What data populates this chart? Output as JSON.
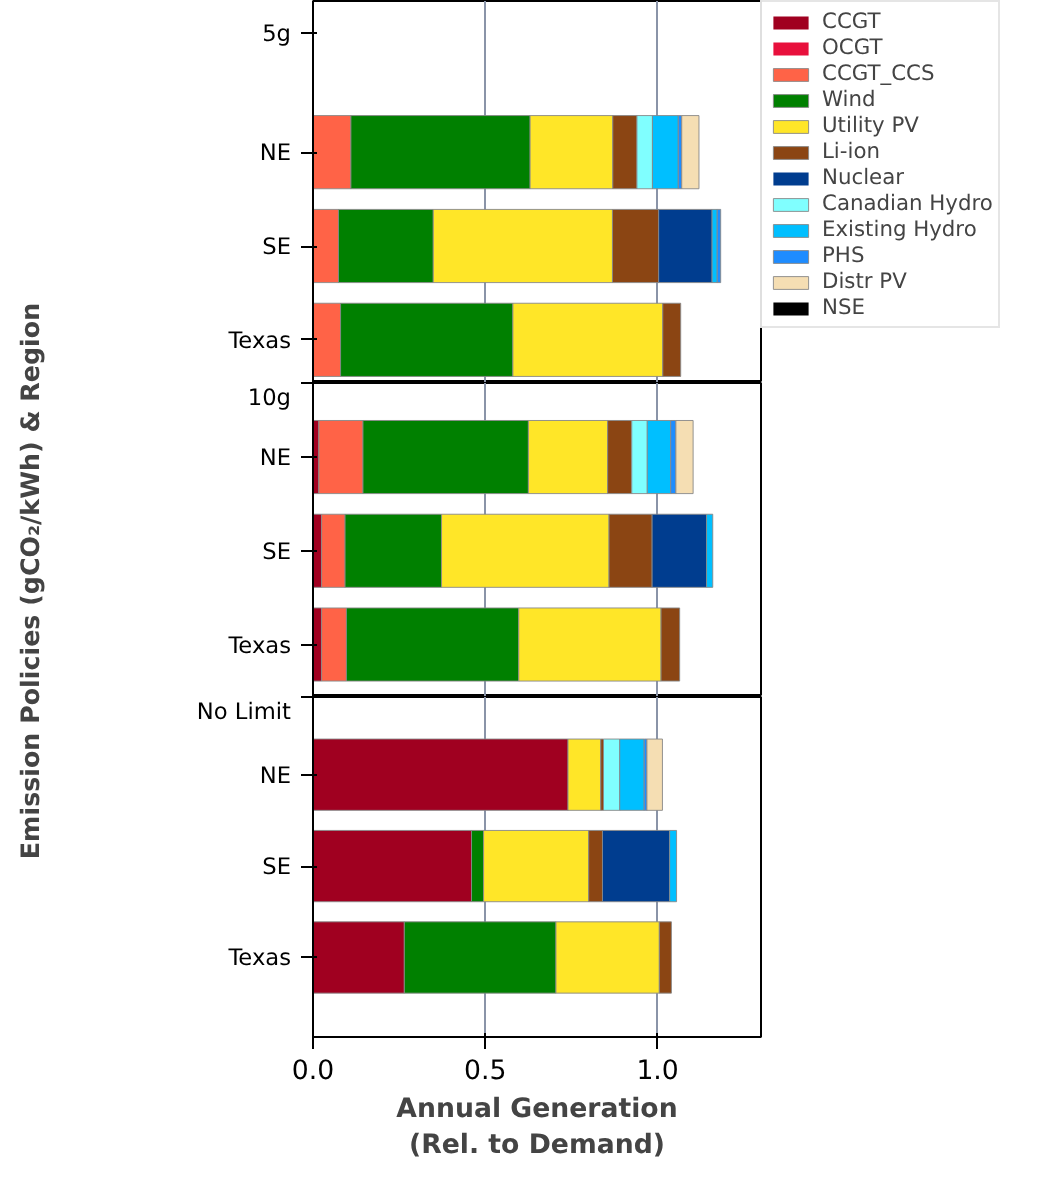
{
  "chart_data": [
    {
      "type": "bar",
      "title": "5g",
      "orientation": "horizontal",
      "stacked": true,
      "categories": [
        "NE",
        "SE",
        "Texas"
      ],
      "xlim": [
        0,
        1.3
      ],
      "xticks": [
        0,
        0.5,
        1
      ],
      "tick_labels": "y",
      "grid": "x",
      "legend": "top right",
      "series": [
        {
          "name": "CCGT",
          "color": "#a00020",
          "values": [
            0,
            0,
            0
          ]
        },
        {
          "name": "OCGT",
          "color": "#e8103c",
          "values": [
            0,
            0,
            0
          ]
        },
        {
          "name": "CCGT_CCS",
          "color": "#ff6347",
          "values": [
            0.11,
            0.074,
            0.08
          ]
        },
        {
          "name": "Wind",
          "color": "#008000",
          "values": [
            0.52,
            0.275,
            0.5
          ]
        },
        {
          "name": "Utility PV",
          "color": "#ffe628",
          "values": [
            0.24,
            0.52,
            0.435
          ]
        },
        {
          "name": "Li-ion",
          "color": "#8b4513",
          "values": [
            0.07,
            0.134,
            0.052
          ]
        },
        {
          "name": "Nuclear",
          "color": "#003d8f",
          "values": [
            0,
            0.155,
            0
          ]
        },
        {
          "name": "Canadian Hydro",
          "color": "#80ffff",
          "values": [
            0.045,
            0,
            0
          ]
        },
        {
          "name": "Existing Hydro",
          "color": "#00bfff",
          "values": [
            0.075,
            0.015,
            0
          ]
        },
        {
          "name": "PHS",
          "color": "#1e8cff",
          "values": [
            0.01,
            0.01,
            0
          ]
        },
        {
          "name": "Distr PV",
          "color": "#f5deb3",
          "values": [
            0.05,
            0,
            0
          ]
        },
        {
          "name": "NSE",
          "color": "#000000",
          "values": [
            0,
            0,
            0
          ]
        }
      ]
    },
    {
      "type": "bar",
      "title": "10g",
      "orientation": "horizontal",
      "stacked": true,
      "categories": [
        "NE",
        "SE",
        "Texas"
      ],
      "xlim": [
        0,
        1.3
      ],
      "xticks": [
        0,
        0.5,
        1
      ],
      "tick_labels": "y",
      "grid": "x",
      "ylabel": "Emission Policies (gCO₂/kWh) & Region",
      "series": [
        {
          "color": "#a00020",
          "values": [
            0.017,
            0.025,
            0.025
          ]
        },
        {
          "color": "#ff6347",
          "values": [
            0.128,
            0.068,
            0.072
          ]
        },
        {
          "color": "#008000",
          "values": [
            0.48,
            0.28,
            0.5
          ]
        },
        {
          "color": "#ffe628",
          "values": [
            0.23,
            0.486,
            0.413
          ]
        },
        {
          "color": "#8b4513",
          "values": [
            0.07,
            0.125,
            0.054
          ]
        },
        {
          "color": "#003d8f",
          "values": [
            0,
            0.158,
            0
          ]
        },
        {
          "color": "#80ffff",
          "values": [
            0.045,
            0,
            0
          ]
        },
        {
          "color": "#00bfff",
          "values": [
            0.068,
            0.018,
            0
          ]
        },
        {
          "color": "#1e8cff",
          "values": [
            0.015,
            0,
            0
          ]
        },
        {
          "color": "#f5deb3",
          "values": [
            0.05,
            0,
            0
          ]
        }
      ]
    },
    {
      "type": "bar",
      "title": "No Limit",
      "orientation": "horizontal",
      "stacked": true,
      "categories": [
        "NE",
        "SE",
        "Texas"
      ],
      "xlim": [
        0,
        1.3
      ],
      "xticks": [
        {
          "value": 0,
          "label": "0.0"
        },
        {
          "value": 0.5,
          "label": "0.5"
        },
        {
          "value": 1,
          "label": "1.0"
        }
      ],
      "grid": "x",
      "xlabel": "Annual Generation\n(Rel. to Demand)",
      "series": [
        {
          "color": "#a00020",
          "values": [
            0.74,
            0.46,
            0.265
          ]
        },
        {
          "color": "#008000",
          "values": [
            0,
            0.035,
            0.44
          ]
        },
        {
          "color": "#ffe628",
          "values": [
            0.095,
            0.305,
            0.3
          ]
        },
        {
          "color": "#8b4513",
          "values": [
            0.008,
            0.04,
            0.035
          ]
        },
        {
          "color": "#003d8f",
          "values": [
            0,
            0.195,
            0
          ]
        },
        {
          "color": "#80ffff",
          "values": [
            0.047,
            0,
            0
          ]
        },
        {
          "color": "#00bfff",
          "values": [
            0.071,
            0.02,
            0
          ]
        },
        {
          "color": "#1e8cff",
          "values": [
            0.008,
            0,
            0
          ]
        },
        {
          "color": "#f5deb3",
          "values": [
            0.045,
            0,
            0
          ]
        }
      ]
    }
  ]
}
